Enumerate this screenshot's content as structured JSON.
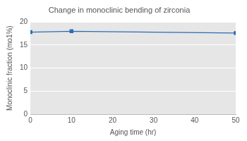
{
  "chart_data": {
    "type": "line",
    "title": "Change in monoclinic bending of zirconia",
    "x_label": "Aging time (hr)",
    "y_label": "Monoclinic fraction (mo1%)",
    "x": [
      0,
      10,
      50
    ],
    "series": [
      {
        "name": "Monoclinic fraction",
        "color": "#2b6cb3",
        "values": [
          17.8,
          18.0,
          17.6
        ],
        "marker": "square",
        "line_style": "solid"
      }
    ],
    "xlim": [
      0,
      50
    ],
    "xticks": [
      0,
      10,
      20,
      30,
      40,
      50
    ],
    "ylim": [
      0,
      20
    ],
    "yticks": [
      0,
      5,
      10,
      15,
      20
    ],
    "grid": true
  }
}
